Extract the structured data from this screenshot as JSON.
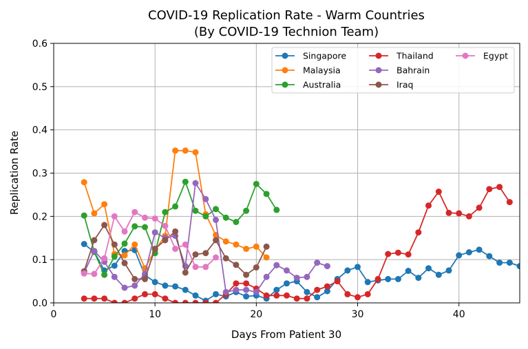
{
  "chart_data": {
    "type": "line",
    "title": "COVID-19 Replication Rate - Warm Countries",
    "subtitle": "(By COVID-19 Technion Team)",
    "xlabel": "Days From Patient 30",
    "ylabel": "Replication Rate",
    "xlim": [
      0,
      46
    ],
    "ylim": [
      0,
      0.6
    ],
    "xticks": [
      "0",
      "10",
      "20",
      "30",
      "40"
    ],
    "yticks": [
      "0.0",
      "0.1",
      "0.2",
      "0.3",
      "0.4",
      "0.5",
      "0.6"
    ],
    "grid": true,
    "legend_position": "top-right",
    "series": [
      {
        "name": "Singapore",
        "color": "#1f77b4",
        "x": [
          3,
          4,
          5,
          6,
          7,
          8,
          9,
          10,
          11,
          12,
          13,
          14,
          15,
          16,
          17,
          18,
          19,
          20,
          21,
          22,
          23,
          24,
          25,
          26,
          27,
          28,
          29,
          30,
          31,
          32,
          33,
          34,
          35,
          36,
          37,
          38,
          39,
          40,
          41,
          42,
          43,
          44,
          45,
          46
        ],
        "y": [
          0.136,
          0.118,
          0.075,
          0.086,
          0.12,
          0.122,
          0.064,
          0.048,
          0.04,
          0.038,
          0.03,
          0.017,
          0.005,
          0.02,
          0.015,
          0.025,
          0.015,
          0.017,
          0.01,
          0.03,
          0.045,
          0.05,
          0.025,
          0.013,
          0.027,
          0.055,
          0.075,
          0.083,
          0.048,
          0.052,
          0.055,
          0.055,
          0.074,
          0.058,
          0.08,
          0.065,
          0.075,
          0.11,
          0.117,
          0.123,
          0.108,
          0.093,
          0.093,
          0.085
        ]
      },
      {
        "name": "Malaysia",
        "color": "#ff7f0e",
        "x": [
          3,
          4,
          5,
          6,
          7,
          8,
          9,
          10,
          11,
          12,
          13,
          14,
          15,
          16,
          17,
          18,
          19,
          20,
          21
        ],
        "y": [
          0.279,
          0.207,
          0.228,
          0.113,
          0.11,
          0.135,
          0.08,
          0.122,
          0.155,
          0.352,
          0.352,
          0.348,
          0.205,
          0.157,
          0.142,
          0.135,
          0.125,
          0.13,
          0.105
        ]
      },
      {
        "name": "Australia",
        "color": "#2ca02c",
        "x": [
          3,
          4,
          5,
          6,
          7,
          8,
          9,
          10,
          11,
          12,
          13,
          14,
          15,
          16,
          17,
          18,
          19,
          20,
          21,
          22
        ],
        "y": [
          0.202,
          0.118,
          0.065,
          0.107,
          0.137,
          0.177,
          0.175,
          0.115,
          0.21,
          0.223,
          0.28,
          0.213,
          0.2,
          0.217,
          0.197,
          0.187,
          0.213,
          0.275,
          0.252,
          0.215
        ]
      },
      {
        "name": "Thailand",
        "color": "#d62728",
        "x": [
          3,
          4,
          5,
          6,
          7,
          8,
          9,
          10,
          11,
          12,
          13,
          14,
          15,
          16,
          17,
          18,
          19,
          20,
          21,
          22,
          23,
          24,
          25,
          26,
          27,
          28,
          29,
          30,
          31,
          32,
          33,
          34,
          35,
          36,
          37,
          38,
          39,
          40,
          41,
          42,
          43,
          44,
          45
        ],
        "y": [
          0.01,
          0.01,
          0.01,
          0.0,
          0.0,
          0.01,
          0.02,
          0.02,
          0.01,
          0.0,
          0.0,
          0.0,
          0.0,
          0.0,
          0.02,
          0.045,
          0.045,
          0.033,
          0.017,
          0.017,
          0.017,
          0.01,
          0.01,
          0.03,
          0.038,
          0.05,
          0.02,
          0.013,
          0.02,
          0.055,
          0.113,
          0.116,
          0.112,
          0.163,
          0.225,
          0.257,
          0.208,
          0.207,
          0.2,
          0.22,
          0.263,
          0.268,
          0.233
        ]
      },
      {
        "name": "Bahrain",
        "color": "#9467bd",
        "x": [
          3,
          4,
          5,
          6,
          7,
          8,
          9,
          10,
          11,
          12,
          13,
          14,
          15,
          16,
          17,
          18,
          19,
          20,
          21,
          22,
          23,
          24,
          25,
          26,
          27
        ],
        "y": [
          0.07,
          0.12,
          0.095,
          0.06,
          0.035,
          0.04,
          0.067,
          0.163,
          0.15,
          0.155,
          0.085,
          0.277,
          0.24,
          0.192,
          0.025,
          0.03,
          0.03,
          0.025,
          0.06,
          0.087,
          0.075,
          0.058,
          0.06,
          0.093,
          0.085
        ]
      },
      {
        "name": "Iraq",
        "color": "#8c564b",
        "x": [
          3,
          4,
          5,
          6,
          7,
          8,
          9,
          10,
          11,
          12,
          13,
          14,
          15,
          16,
          17,
          18,
          19,
          20,
          21
        ],
        "y": [
          0.073,
          0.145,
          0.18,
          0.135,
          0.092,
          0.055,
          0.055,
          0.125,
          0.145,
          0.165,
          0.07,
          0.112,
          0.115,
          0.145,
          0.103,
          0.088,
          0.065,
          0.082,
          0.13
        ]
      },
      {
        "name": "Egypt",
        "color": "#e377c2",
        "x": [
          3,
          4,
          5,
          6,
          7,
          8,
          9,
          10,
          11,
          12,
          13,
          14,
          15,
          16
        ],
        "y": [
          0.068,
          0.067,
          0.103,
          0.2,
          0.165,
          0.21,
          0.197,
          0.195,
          0.178,
          0.125,
          0.135,
          0.083,
          0.083,
          0.105
        ]
      }
    ]
  }
}
